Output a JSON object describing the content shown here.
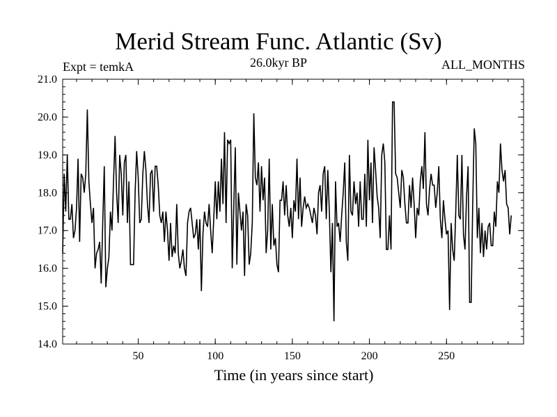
{
  "header": {
    "title": "Merid Stream Func. Atlantic (Sv)",
    "experiment": "Expt = temkA",
    "period": "26.0kyr BP",
    "months": "ALL_MONTHS"
  },
  "chart_data": {
    "type": "line",
    "title": "Merid Stream Func. Atlantic (Sv)",
    "xlabel": "Time (in years since start)",
    "ylabel": "",
    "xlim": [
      1,
      300
    ],
    "ylim": [
      14.0,
      21.0
    ],
    "xticks": [
      50,
      100,
      150,
      200,
      250
    ],
    "yticks": [
      14.0,
      15.0,
      16.0,
      17.0,
      18.0,
      19.0,
      20.0,
      21.0
    ],
    "ytick_labels": [
      "14.0",
      "15.0",
      "16.0",
      "17.0",
      "18.0",
      "19.0",
      "20.0",
      "21.0"
    ],
    "series": [
      {
        "name": "Merid Stream Func. Atlantic",
        "x_start": 1,
        "x_step": 1,
        "values": [
          16.4,
          18.5,
          17.5,
          19.0,
          17.3,
          17.3,
          17.7,
          16.8,
          17.0,
          17.6,
          18.9,
          16.7,
          18.5,
          18.4,
          18.0,
          18.5,
          20.2,
          18.3,
          17.7,
          17.2,
          17.6,
          16.0,
          16.4,
          16.5,
          16.7,
          15.6,
          17.2,
          18.7,
          15.5,
          16.0,
          16.3,
          17.5,
          17.0,
          18.3,
          19.5,
          18.0,
          17.2,
          19.0,
          18.5,
          17.4,
          18.8,
          19.0,
          17.2,
          18.3,
          16.1,
          16.1,
          16.1,
          18.0,
          19.1,
          18.4,
          17.2,
          17.3,
          18.5,
          19.1,
          18.6,
          17.7,
          17.2,
          18.5,
          18.6,
          17.5,
          18.7,
          18.7,
          18.2,
          17.4,
          17.2,
          17.5,
          16.7,
          17.5,
          17.0,
          16.2,
          17.2,
          16.3,
          16.6,
          16.4,
          17.7,
          16.4,
          16.0,
          16.2,
          16.5,
          16.0,
          15.8,
          17.2,
          17.5,
          17.6,
          17.2,
          16.8,
          16.9,
          17.3,
          16.5,
          17.3,
          15.4,
          16.9,
          17.5,
          17.2,
          17.1,
          17.7,
          17.0,
          16.4,
          17.3,
          18.3,
          17.3,
          18.3,
          17.5,
          18.9,
          17.7,
          19.6,
          17.2,
          19.4,
          19.3,
          19.4,
          16.0,
          17.6,
          19.2,
          16.1,
          18.0,
          17.5,
          17.0,
          17.5,
          15.8,
          17.7,
          17.4,
          16.1,
          16.4,
          17.2,
          20.1,
          18.4,
          18.2,
          18.8,
          17.5,
          18.7,
          17.8,
          18.4,
          16.4,
          17.0,
          18.9,
          16.5,
          17.7,
          16.6,
          16.8,
          16.1,
          15.9,
          17.8,
          17.8,
          18.3,
          17.4,
          18.2,
          17.4,
          17.1,
          17.6,
          16.8,
          17.8,
          17.5,
          18.9,
          17.3,
          18.4,
          17.1,
          17.6,
          17.9,
          17.6,
          17.7,
          17.6,
          17.4,
          17.2,
          17.6,
          17.4,
          16.9,
          18.0,
          18.2,
          17.5,
          18.5,
          18.7,
          17.3,
          18.6,
          17.5,
          15.9,
          17.2,
          14.6,
          18.3,
          17.1,
          17.2,
          16.7,
          17.4,
          18.0,
          18.8,
          16.7,
          16.2,
          19.0,
          17.5,
          17.4,
          18.3,
          17.7,
          18.0,
          17.1,
          18.3,
          17.3,
          17.3,
          18.5,
          17.1,
          19.4,
          17.8,
          18.8,
          17.2,
          19.2,
          18.6,
          17.9,
          17.6,
          16.8,
          19.0,
          19.3,
          18.8,
          16.5,
          16.5,
          17.4,
          16.5,
          20.4,
          20.4,
          18.5,
          18.4,
          18.0,
          17.6,
          18.6,
          18.4,
          17.7,
          17.2,
          17.2,
          18.2,
          17.6,
          18.4,
          17.7,
          16.8,
          17.6,
          17.4,
          18.3,
          18.7,
          18.1,
          19.6,
          17.7,
          17.4,
          18.1,
          18.5,
          18.2,
          18.2,
          17.6,
          18.0,
          18.7,
          17.3,
          16.8,
          17.8,
          17.3,
          16.9,
          17.0,
          14.9,
          17.2,
          16.5,
          16.2,
          17.5,
          19.0,
          17.4,
          17.3,
          19.0,
          16.9,
          16.5,
          17.9,
          18.7,
          15.1,
          15.1,
          17.7,
          19.7,
          19.3,
          16.8,
          17.6,
          16.4,
          17.2,
          16.3,
          17.0,
          16.5,
          17.1,
          17.2,
          16.6,
          16.6,
          17.5,
          17.1,
          18.3,
          18.0,
          19.3,
          18.6,
          18.3,
          18.6,
          17.7,
          17.6,
          16.9,
          17.4
        ]
      }
    ]
  }
}
